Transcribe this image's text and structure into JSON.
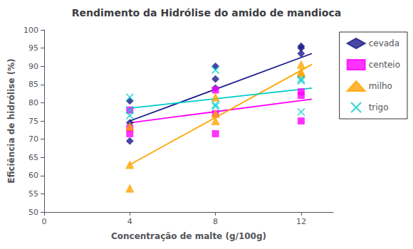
{
  "chart_data": {
    "type": "scatter",
    "title": "Rendimento da Hidrólise do amido de mandioca",
    "xlabel": "Concentração de malte (g/100g)",
    "ylabel": "Eficiência de hidrólise (%)",
    "xlim": [
      0,
      13.5
    ],
    "ylim": [
      50,
      100
    ],
    "xticks": [
      0,
      4,
      8,
      12
    ],
    "yticks": [
      50,
      55,
      60,
      65,
      70,
      75,
      80,
      85,
      90,
      95,
      100
    ],
    "grid": false,
    "legend": "right",
    "series": [
      {
        "name": "cevada",
        "color": "#1A1A8C",
        "marker": "diamond",
        "x": [
          4,
          4,
          4,
          8,
          8,
          8,
          12,
          12,
          12
        ],
        "values": [
          80.5,
          74.5,
          69.5,
          90.0,
          86.5,
          84.0,
          95.5,
          95.0,
          93.5
        ],
        "trend": {
          "x": [
            4,
            12.5
          ],
          "values": [
            75.0,
            93.5
          ]
        }
      },
      {
        "name": "centeio",
        "color": "#FF00FF",
        "marker": "square",
        "x": [
          4,
          4,
          4,
          8,
          8,
          8,
          12,
          12,
          12
        ],
        "values": [
          78.0,
          73.0,
          71.5,
          83.5,
          77.0,
          71.5,
          83.0,
          82.0,
          75.0
        ],
        "trend": {
          "x": [
            4,
            12.5
          ],
          "values": [
            74.5,
            81.0
          ]
        }
      },
      {
        "name": "milho",
        "color": "#FFA500",
        "marker": "triangle",
        "x": [
          4,
          4,
          4,
          8,
          8,
          8,
          12,
          12,
          12
        ],
        "values": [
          63.0,
          56.5,
          73.5,
          81.5,
          77.0,
          75.0,
          90.5,
          88.5,
          88.0
        ],
        "trend": {
          "x": [
            4,
            12.5
          ],
          "values": [
            63.0,
            90.5
          ]
        }
      },
      {
        "name": "trigo",
        "color": "#00CCCC",
        "marker": "x",
        "x": [
          4,
          4,
          4,
          8,
          8,
          8,
          12,
          12,
          12
        ],
        "values": [
          81.5,
          78.0,
          76.5,
          89.0,
          79.5,
          79.0,
          86.5,
          86.0,
          77.5
        ],
        "trend": {
          "x": [
            4,
            12.5
          ],
          "values": [
            78.5,
            84.0
          ]
        }
      }
    ]
  }
}
